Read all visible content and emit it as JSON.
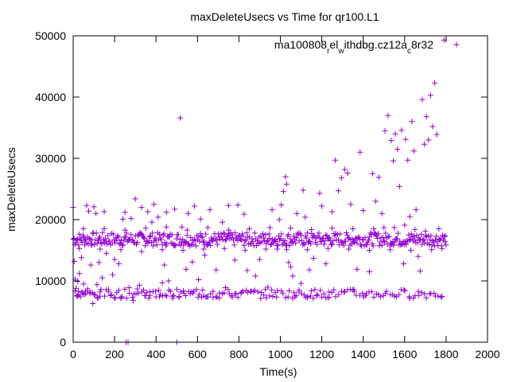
{
  "chart_data": {
    "type": "scatter",
    "title": "maxDeleteUsecs vs Time for qr100.L1",
    "xlabel": "Time(s)",
    "ylabel": "maxDeleteUsecs",
    "xlim": [
      0,
      2000
    ],
    "ylim": [
      0,
      50000
    ],
    "x_ticks": [
      "0",
      "200",
      "400",
      "600",
      "800",
      "1000",
      "1200",
      "1400",
      "1600",
      "1800",
      "2000"
    ],
    "y_ticks": [
      "0",
      "10000",
      "20000",
      "30000",
      "40000",
      "50000"
    ],
    "grid": false,
    "legend_position": "top-right",
    "series": [
      {
        "name": "ma100808_rel_withdbg.cz12a_c8r32",
        "legend_parts": [
          {
            "text": "ma100808",
            "shift": "none"
          },
          {
            "text": "r",
            "shift": "sub"
          },
          {
            "text": "el",
            "shift": "none"
          },
          {
            "text": "w",
            "shift": "sub"
          },
          {
            "text": "ithdbg.cz12a",
            "shift": "none"
          },
          {
            "text": "c",
            "shift": "sub"
          },
          {
            "text": "8r32",
            "shift": "none"
          }
        ],
        "color": "#9400d3",
        "marker": "+",
        "points": [
          [
            0,
            22000
          ],
          [
            5,
            13200
          ],
          [
            10,
            10300
          ],
          [
            14,
            8800
          ],
          [
            18,
            7600
          ],
          [
            22,
            9900
          ],
          [
            26,
            8300
          ],
          [
            30,
            11200
          ],
          [
            35,
            7400
          ],
          [
            40,
            13800
          ],
          [
            45,
            8000
          ],
          [
            50,
            9500
          ],
          [
            55,
            16600
          ],
          [
            60,
            7900
          ],
          [
            65,
            22300
          ],
          [
            70,
            8700
          ],
          [
            75,
            21400
          ],
          [
            80,
            8100
          ],
          [
            85,
            12600
          ],
          [
            90,
            16700
          ],
          [
            95,
            6300
          ],
          [
            100,
            22100
          ],
          [
            105,
            7700
          ],
          [
            110,
            21000
          ],
          [
            115,
            9400
          ],
          [
            120,
            7200
          ],
          [
            125,
            13000
          ],
          [
            130,
            8200
          ],
          [
            140,
            10500
          ],
          [
            150,
            21300
          ],
          [
            160,
            14500
          ],
          [
            170,
            8600
          ],
          [
            180,
            7600
          ],
          [
            190,
            11000
          ],
          [
            200,
            13500
          ],
          [
            210,
            8100
          ],
          [
            220,
            12800
          ],
          [
            230,
            7300
          ],
          [
            240,
            20100
          ],
          [
            250,
            21200
          ],
          [
            255,
            0
          ],
          [
            265,
            0
          ],
          [
            270,
            8900
          ],
          [
            280,
            20200
          ],
          [
            290,
            6800
          ],
          [
            300,
            23400
          ],
          [
            310,
            8700
          ],
          [
            320,
            9300
          ],
          [
            330,
            22000
          ],
          [
            340,
            8500
          ],
          [
            350,
            7600
          ],
          [
            360,
            21300
          ],
          [
            370,
            8200
          ],
          [
            380,
            19600
          ],
          [
            390,
            22500
          ],
          [
            400,
            7400
          ],
          [
            410,
            20400
          ],
          [
            420,
            7800
          ],
          [
            430,
            9700
          ],
          [
            440,
            12600
          ],
          [
            450,
            21200
          ],
          [
            460,
            10000
          ],
          [
            470,
            8300
          ],
          [
            480,
            7500
          ],
          [
            490,
            21700
          ],
          [
            500,
            0
          ],
          [
            510,
            7300
          ],
          [
            517,
            36600
          ],
          [
            525,
            18800
          ],
          [
            535,
            8000
          ],
          [
            545,
            11900
          ],
          [
            555,
            21000
          ],
          [
            565,
            7900
          ],
          [
            575,
            13100
          ],
          [
            585,
            22200
          ],
          [
            595,
            8600
          ],
          [
            605,
            10200
          ],
          [
            615,
            20100
          ],
          [
            625,
            8500
          ],
          [
            635,
            14200
          ],
          [
            645,
            7400
          ],
          [
            660,
            21600
          ],
          [
            675,
            8300
          ],
          [
            690,
            11800
          ],
          [
            705,
            7200
          ],
          [
            720,
            19600
          ],
          [
            735,
            8900
          ],
          [
            750,
            22300
          ],
          [
            765,
            7600
          ],
          [
            780,
            13400
          ],
          [
            795,
            22400
          ],
          [
            810,
            8000
          ],
          [
            825,
            20900
          ],
          [
            840,
            11700
          ],
          [
            860,
            8300
          ],
          [
            880,
            10800
          ],
          [
            900,
            13500
          ],
          [
            920,
            7700
          ],
          [
            940,
            9000
          ],
          [
            960,
            21600
          ],
          [
            975,
            8100
          ],
          [
            985,
            15200
          ],
          [
            995,
            20000
          ],
          [
            1005,
            22400
          ],
          [
            1015,
            24600
          ],
          [
            1025,
            27000
          ],
          [
            1030,
            25800
          ],
          [
            1040,
            13000
          ],
          [
            1050,
            12300
          ],
          [
            1060,
            10800
          ],
          [
            1070,
            7400
          ],
          [
            1080,
            21000
          ],
          [
            1090,
            8200
          ],
          [
            1100,
            9600
          ],
          [
            1110,
            24800
          ],
          [
            1120,
            20400
          ],
          [
            1130,
            7300
          ],
          [
            1140,
            11800
          ],
          [
            1150,
            8400
          ],
          [
            1160,
            13700
          ],
          [
            1175,
            7600
          ],
          [
            1190,
            24300
          ],
          [
            1200,
            22200
          ],
          [
            1210,
            7900
          ],
          [
            1220,
            12800
          ],
          [
            1235,
            8200
          ],
          [
            1250,
            21300
          ],
          [
            1265,
            29700
          ],
          [
            1280,
            24700
          ],
          [
            1295,
            26800
          ],
          [
            1310,
            28200
          ],
          [
            1325,
            27600
          ],
          [
            1340,
            22500
          ],
          [
            1355,
            8600
          ],
          [
            1370,
            11900
          ],
          [
            1385,
            31000
          ],
          [
            1400,
            21500
          ],
          [
            1415,
            7900
          ],
          [
            1430,
            11500
          ],
          [
            1445,
            27500
          ],
          [
            1460,
            23000
          ],
          [
            1475,
            26900
          ],
          [
            1490,
            21000
          ],
          [
            1505,
            34500
          ],
          [
            1520,
            37000
          ],
          [
            1535,
            32900
          ],
          [
            1545,
            29600
          ],
          [
            1555,
            34000
          ],
          [
            1565,
            31500
          ],
          [
            1575,
            25400
          ],
          [
            1585,
            34600
          ],
          [
            1595,
            12800
          ],
          [
            1605,
            33100
          ],
          [
            1615,
            29700
          ],
          [
            1625,
            20500
          ],
          [
            1635,
            36000
          ],
          [
            1645,
            31200
          ],
          [
            1655,
            21600
          ],
          [
            1665,
            14000
          ],
          [
            1675,
            11600
          ],
          [
            1685,
            39600
          ],
          [
            1695,
            32300
          ],
          [
            1705,
            36800
          ],
          [
            1715,
            33000
          ],
          [
            1725,
            40300
          ],
          [
            1735,
            35200
          ],
          [
            1745,
            42300
          ],
          [
            1755,
            33900
          ],
          [
            1765,
            18500
          ],
          [
            1790,
            49300
          ],
          [
            1650,
            18400
          ],
          [
            1700,
            18100
          ],
          [
            1600,
            19100
          ],
          [
            1550,
            18700
          ],
          [
            1500,
            18700
          ],
          [
            1450,
            18500
          ],
          [
            1350,
            18500
          ],
          [
            1250,
            18600
          ],
          [
            1150,
            18400
          ],
          [
            1050,
            18600
          ],
          [
            950,
            18700
          ],
          [
            850,
            18500
          ],
          [
            750,
            18300
          ],
          [
            650,
            18700
          ],
          [
            550,
            18300
          ],
          [
            450,
            18800
          ],
          [
            350,
            18600
          ],
          [
            250,
            18300
          ],
          [
            150,
            18500
          ],
          [
            50,
            18500
          ],
          [
            30,
            15300
          ],
          [
            130,
            15200
          ],
          [
            230,
            15100
          ],
          [
            330,
            14800
          ],
          [
            430,
            15100
          ],
          [
            530,
            15000
          ],
          [
            630,
            15200
          ],
          [
            730,
            15300
          ],
          [
            830,
            15000
          ],
          [
            930,
            15200
          ],
          [
            1030,
            15100
          ],
          [
            1130,
            15100
          ],
          [
            1230,
            15300
          ],
          [
            1330,
            15200
          ],
          [
            1430,
            15000
          ],
          [
            1530,
            15100
          ],
          [
            1630,
            15000
          ],
          [
            1730,
            15100
          ],
          [
            1780,
            15300
          ],
          [
            1795,
            16400
          ]
        ]
      }
    ]
  }
}
